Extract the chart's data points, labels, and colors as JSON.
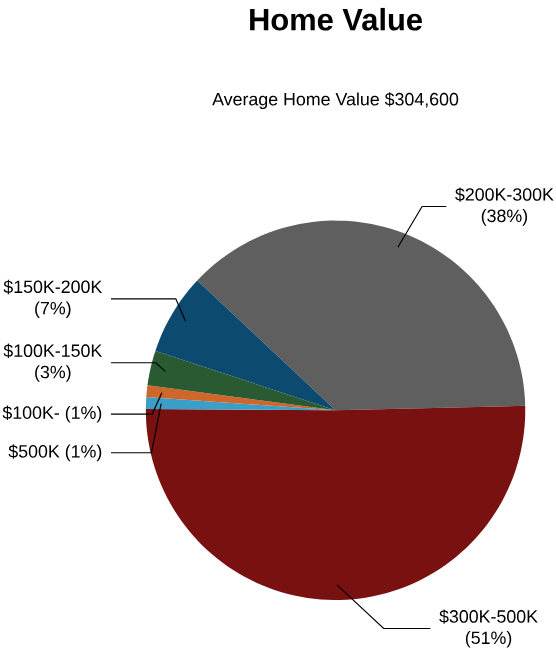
{
  "chart_data": {
    "type": "pie",
    "title": "Home Value",
    "subtitle": "Average Home Value  $304,600",
    "categories": [
      "$200K-300K",
      "$300K-500K",
      "$500K",
      "$100K-",
      "$100K-150K",
      "$150K-200K"
    ],
    "values": [
      38,
      51,
      1,
      1,
      3,
      7
    ],
    "value_labels": [
      "(38%)",
      "(51%)",
      "(1%)",
      "(1%)",
      "(3%)",
      "(7%)"
    ],
    "colors": [
      "#5f5f5f",
      "#7a1111",
      "#3a9fc8",
      "#d0662a",
      "#2a5a32",
      "#0c4a70"
    ]
  }
}
